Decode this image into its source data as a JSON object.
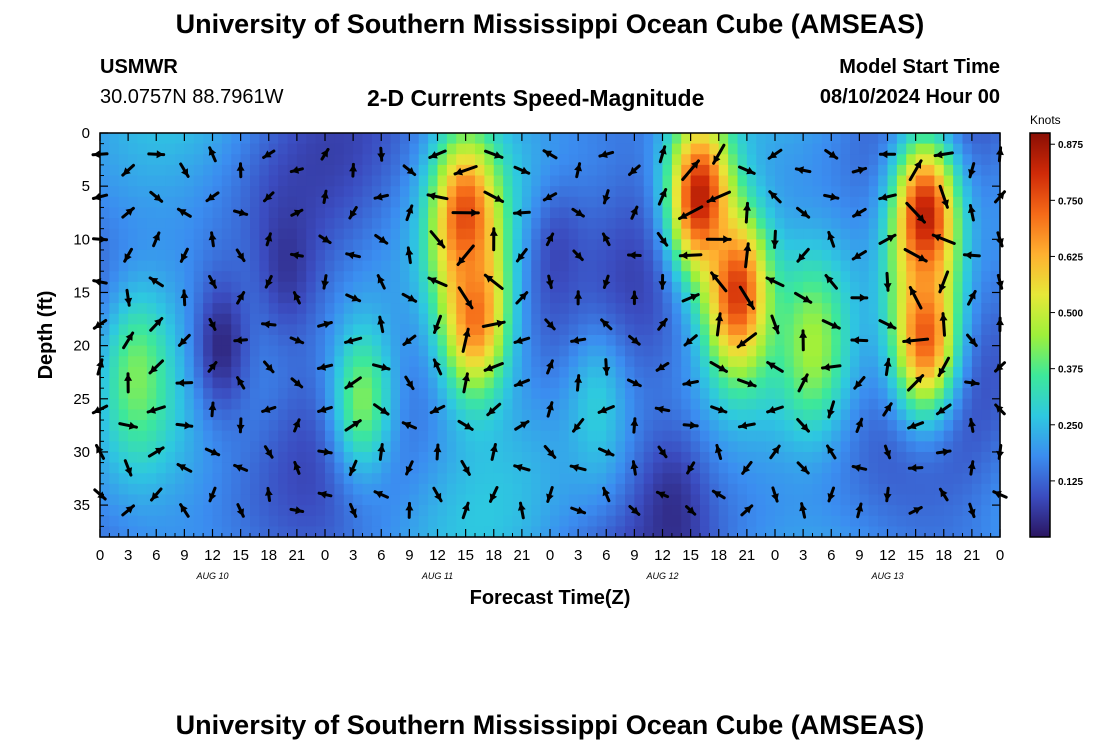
{
  "header": {
    "title": "University of Southern Mississippi Ocean Cube (AMSEAS)",
    "station": "USMWR",
    "coords": "30.0757N  88.7961W",
    "chart_title": "2-D Currents Speed-Magnitude",
    "model_label": "Model Start Time",
    "model_time": "08/10/2024 Hour 00"
  },
  "footer": {
    "title": "University of Southern Mississippi Ocean Cube (AMSEAS)"
  },
  "chart_data": {
    "type": "heatmap",
    "title": "2-D Currents Speed-Magnitude",
    "xlabel": "Forecast Time(Z)",
    "ylabel": "Depth (ft)",
    "x_range_hours": [
      0,
      96
    ],
    "ylim": [
      0,
      38
    ],
    "x_tick_hours": [
      0,
      3,
      6,
      9,
      12,
      15,
      18,
      21,
      24,
      27,
      30,
      33,
      36,
      39,
      42,
      45,
      48,
      51,
      54,
      57,
      60,
      63,
      66,
      69,
      72,
      75,
      78,
      81,
      84,
      87,
      90,
      93,
      96
    ],
    "x_tick_labels": [
      "0",
      "3",
      "6",
      "9",
      "12",
      "15",
      "18",
      "21",
      "0",
      "3",
      "6",
      "9",
      "12",
      "15",
      "18",
      "21",
      "0",
      "3",
      "6",
      "9",
      "12",
      "15",
      "18",
      "21",
      "0",
      "3",
      "6",
      "9",
      "12",
      "15",
      "18",
      "21",
      "0"
    ],
    "day_labels": [
      {
        "text": "AUG 10",
        "hour": 12
      },
      {
        "text": "AUG 11",
        "hour": 36
      },
      {
        "text": "AUG 12",
        "hour": 60
      },
      {
        "text": "AUG 13",
        "hour": 84
      }
    ],
    "y_ticks": [
      0,
      5,
      10,
      15,
      20,
      25,
      30,
      35
    ],
    "colorbar": {
      "unit": "Knots",
      "min": 0,
      "max": 0.9,
      "ticks": [
        "0.875",
        "0.750",
        "0.625",
        "0.500",
        "0.375",
        "0.250",
        "0.125"
      ],
      "tick_values": [
        0.875,
        0.75,
        0.625,
        0.5,
        0.375,
        0.25,
        0.125
      ],
      "colors": [
        "#2a1560",
        "#3b4cc0",
        "#3b8df0",
        "#2ec8e0",
        "#3de89a",
        "#9ef03a",
        "#e6e838",
        "#ffb030",
        "#f56a18",
        "#cf2a08",
        "#8a0e04"
      ]
    },
    "speed_centers": [
      {
        "hour": 4,
        "depth": 23,
        "speed": 0.42
      },
      {
        "hour": 13,
        "depth": 20,
        "speed": 0.03
      },
      {
        "hour": 20,
        "depth": 12,
        "speed": 0.05
      },
      {
        "hour": 28,
        "depth": 25,
        "speed": 0.42
      },
      {
        "hour": 39,
        "depth": 8,
        "speed": 0.78
      },
      {
        "hour": 40,
        "depth": 17,
        "speed": 0.72
      },
      {
        "hour": 49,
        "depth": 12,
        "speed": 0.08
      },
      {
        "hour": 53,
        "depth": 26,
        "speed": 0.28
      },
      {
        "hour": 61,
        "depth": 36,
        "speed": 0.04
      },
      {
        "hour": 64,
        "depth": 6,
        "speed": 0.85
      },
      {
        "hour": 68,
        "depth": 15,
        "speed": 0.8
      },
      {
        "hour": 76,
        "depth": 20,
        "speed": 0.46
      },
      {
        "hour": 88,
        "depth": 8,
        "speed": 0.86
      },
      {
        "hour": 88,
        "depth": 19,
        "speed": 0.75
      }
    ],
    "vectors_note": "current direction arrows sampled every 3 hours at depths 2-36 ft"
  }
}
